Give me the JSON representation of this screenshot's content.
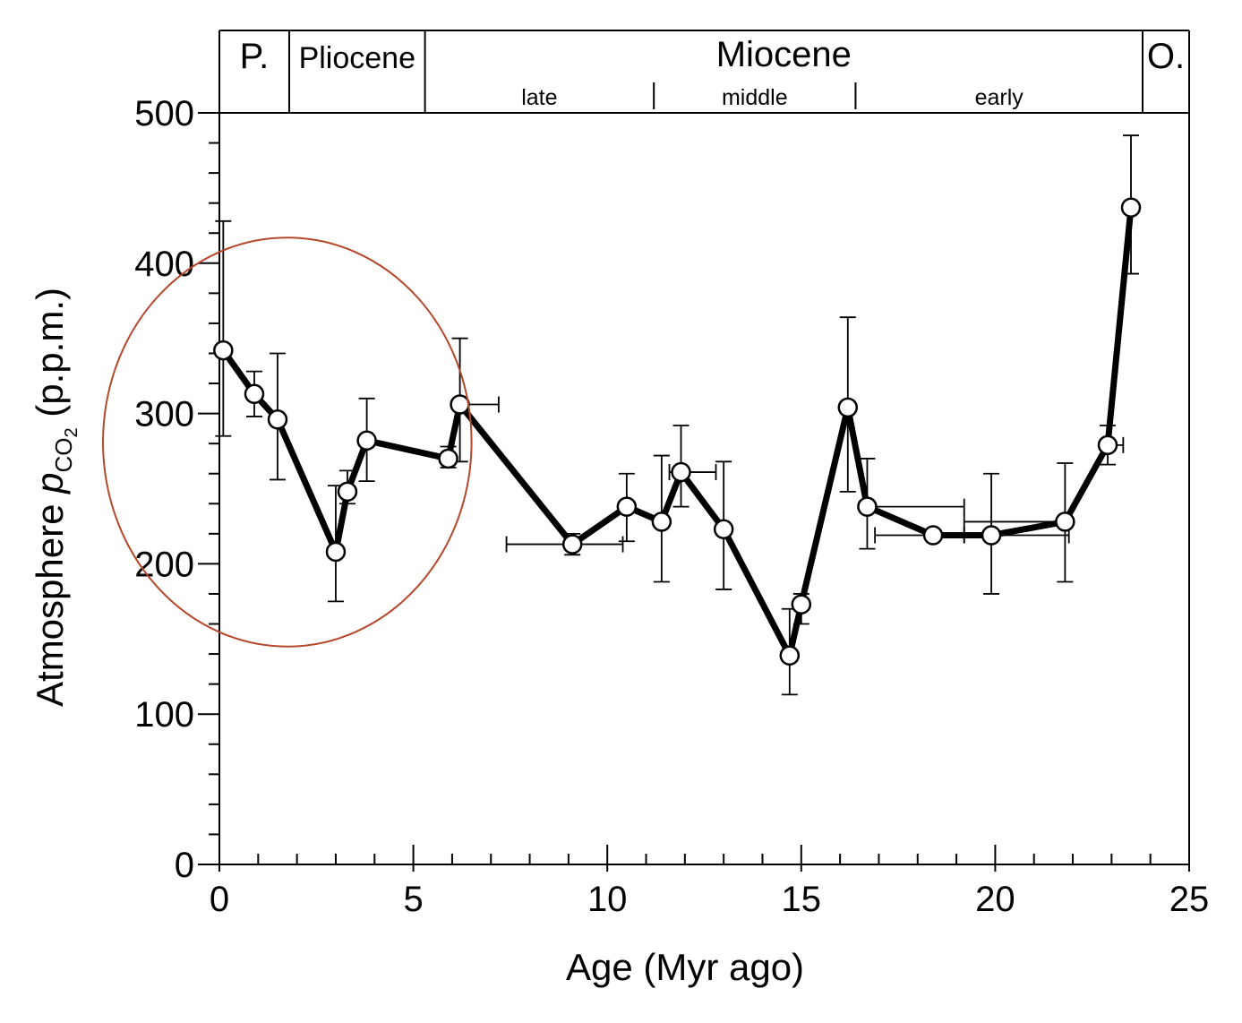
{
  "chart_data": {
    "type": "scatter",
    "xlabel": "Age (Myr ago)",
    "ylabel_parts": {
      "main": "Atmosphere ",
      "p": "p",
      "sub1": "CO",
      "sub2": "2",
      "unit": " (p.p.m.)"
    },
    "xlim": [
      0,
      25
    ],
    "ylim": [
      0,
      500
    ],
    "x_ticks": [
      0,
      5,
      10,
      15,
      20,
      25
    ],
    "x_tick_labels": [
      "0",
      "5",
      "10",
      "15",
      "20",
      "25"
    ],
    "y_ticks": [
      0,
      100,
      200,
      300,
      400,
      500
    ],
    "y_tick_labels": [
      "0",
      "100",
      "200",
      "300",
      "400",
      "500"
    ],
    "grid": false,
    "series": [
      {
        "style": "line-with-open-circles",
        "points": [
          {
            "x": 0.1,
            "y": 342,
            "yerr": [
              285,
              428
            ]
          },
          {
            "x": 0.9,
            "y": 313,
            "yerr": [
              298,
              328
            ]
          },
          {
            "x": 1.5,
            "y": 296,
            "yerr": [
              256,
              340
            ]
          },
          {
            "x": 3.0,
            "y": 208,
            "yerr": [
              175,
              252
            ]
          },
          {
            "x": 3.3,
            "y": 248,
            "yerr": [
              240,
              262
            ]
          },
          {
            "x": 3.8,
            "y": 282,
            "yerr": [
              255,
              310
            ]
          },
          {
            "x": 5.9,
            "y": 270,
            "yerr": [
              264,
              278
            ]
          },
          {
            "x": 6.2,
            "y": 306,
            "yerr": [
              268,
              350
            ],
            "xerr": [
              6.2,
              7.2
            ]
          },
          {
            "x": 9.1,
            "y": 213,
            "yerr": [
              206,
              220
            ],
            "xerr": [
              7.4,
              10.4
            ]
          },
          {
            "x": 10.5,
            "y": 238,
            "yerr": [
              215,
              260
            ]
          },
          {
            "x": 11.4,
            "y": 228,
            "yerr": [
              188,
              272
            ]
          },
          {
            "x": 11.9,
            "y": 261,
            "yerr": [
              238,
              292
            ],
            "xerr": [
              11.6,
              12.8
            ]
          },
          {
            "x": 13.0,
            "y": 223,
            "yerr": [
              183,
              268
            ]
          },
          {
            "x": 14.7,
            "y": 139,
            "yerr": [
              113,
              170
            ]
          },
          {
            "x": 15.0,
            "y": 173,
            "yerr": [
              160,
              180
            ]
          },
          {
            "x": 16.2,
            "y": 304,
            "yerr": [
              248,
              364
            ]
          },
          {
            "x": 16.7,
            "y": 238,
            "yerr": [
              210,
              270
            ],
            "xerr": [
              16.7,
              19.2
            ]
          },
          {
            "x": 18.4,
            "y": 219,
            "yerr": [
              219,
              219
            ],
            "xerr": [
              16.9,
              19.2
            ]
          },
          {
            "x": 19.9,
            "y": 219,
            "yerr": [
              180,
              260
            ],
            "xerr": [
              19.2,
              21.9
            ]
          },
          {
            "x": 21.8,
            "y": 228,
            "yerr": [
              188,
              267
            ],
            "xerr": [
              19.2,
              21.9
            ]
          },
          {
            "x": 22.9,
            "y": 279,
            "yerr": [
              266,
              292
            ],
            "xerr": [
              22.9,
              23.3
            ]
          },
          {
            "x": 23.5,
            "y": 437,
            "yerr": [
              393,
              485
            ]
          }
        ]
      }
    ],
    "epochs": [
      {
        "label": "P.",
        "range": [
          0,
          1.8
        ],
        "size": "big"
      },
      {
        "label": "Pliocene",
        "range": [
          1.8,
          5.3
        ],
        "size": "mid"
      },
      {
        "label": "Miocene",
        "range": [
          5.3,
          23.8
        ],
        "size": "big"
      },
      {
        "label": "O.",
        "range": [
          23.8,
          25
        ],
        "size": "big"
      }
    ],
    "sub_epochs": [
      {
        "label": "late",
        "range": [
          5.3,
          11.2
        ]
      },
      {
        "label": "middle",
        "range": [
          11.2,
          16.4
        ]
      },
      {
        "label": "early",
        "range": [
          16.4,
          23.8
        ]
      }
    ],
    "annotation": {
      "shape": "ellipse",
      "color": "#b5472a",
      "x_range": [
        -3.0,
        6.5
      ],
      "y_range": [
        145,
        417
      ]
    }
  }
}
